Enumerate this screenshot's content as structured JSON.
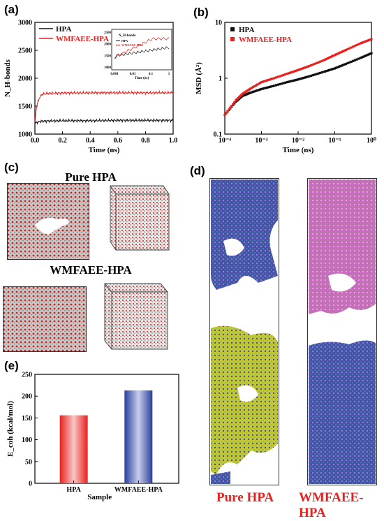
{
  "panels": {
    "a": {
      "label": "(a)"
    },
    "b": {
      "label": "(b)"
    },
    "c": {
      "label": "(c)",
      "title_top": "Pure HPA",
      "title_bottom": "WMFAEE-HPA"
    },
    "d": {
      "label": "(d)",
      "left_label": "Pure HPA",
      "right_label": "WMFAEE-HPA"
    },
    "e": {
      "label": "(e)"
    }
  },
  "colors": {
    "hpa": "#111111",
    "wmfaee": "#e8211e",
    "bar_red": "#e8211e",
    "bar_blue": "#2a3f9c"
  },
  "chart_data": [
    {
      "id": "a",
      "type": "line",
      "xlabel": "Time (ns)",
      "ylabel": "N_H-bonds",
      "xlim": [
        0,
        1.0
      ],
      "ylim": [
        1000,
        3000
      ],
      "xticks": [
        "0.0",
        "0.2",
        "0.4",
        "0.6",
        "0.8",
        "1.0"
      ],
      "yticks": [
        "1000",
        "1500",
        "2000",
        "2500",
        "3000"
      ],
      "legend": "top-left",
      "series": [
        {
          "name": "HPA",
          "x": [
            0,
            0.005,
            0.01,
            0.02,
            0.03,
            0.05,
            0.1,
            0.2,
            0.4,
            0.6,
            0.8,
            1.0
          ],
          "y": [
            1180,
            1200,
            1210,
            1215,
            1220,
            1230,
            1235,
            1240,
            1240,
            1245,
            1245,
            1245
          ]
        },
        {
          "name": "WMFAEE-HPA",
          "x": [
            0,
            0.005,
            0.01,
            0.02,
            0.03,
            0.05,
            0.1,
            0.2,
            0.4,
            0.6,
            0.8,
            1.0
          ],
          "y": [
            1180,
            1350,
            1460,
            1560,
            1640,
            1710,
            1730,
            1735,
            1740,
            1740,
            1740,
            1740
          ]
        }
      ],
      "inset": {
        "xlabel": "Time (ns)",
        "ylabel": "N_H-bonds",
        "xticks": [
          "0.001",
          "0.01",
          "0.1",
          "1"
        ],
        "yticks": [
          "1000",
          "1500",
          "2000",
          "2500"
        ],
        "legend": [
          "HPA",
          "WMFAEE-HPA"
        ]
      }
    },
    {
      "id": "b",
      "type": "scatter",
      "xscale": "log",
      "yscale": "log",
      "xlabel": "Time (ns)",
      "ylabel": "MSD (Å²)",
      "xlim": [
        0.0001,
        1
      ],
      "ylim": [
        0.1,
        10
      ],
      "xticks": [
        "10⁻⁴",
        "10⁻³",
        "10⁻²",
        "10⁻¹",
        "10⁰"
      ],
      "yticks": [
        "0.1",
        "1",
        "10"
      ],
      "legend": "top-left",
      "series": [
        {
          "name": "HPA",
          "x": [
            0.0001,
            0.0002,
            0.0003,
            0.0005,
            0.001,
            0.002,
            0.005,
            0.01,
            0.02,
            0.05,
            0.1,
            0.2,
            0.5,
            1.0
          ],
          "y": [
            0.22,
            0.38,
            0.48,
            0.55,
            0.64,
            0.72,
            0.85,
            0.95,
            1.08,
            1.3,
            1.5,
            1.8,
            2.3,
            2.8
          ]
        },
        {
          "name": "WMFAEE-HPA",
          "x": [
            0.0001,
            0.0002,
            0.0003,
            0.0005,
            0.001,
            0.002,
            0.005,
            0.01,
            0.02,
            0.05,
            0.1,
            0.2,
            0.5,
            1.0
          ],
          "y": [
            0.22,
            0.4,
            0.52,
            0.65,
            0.85,
            0.98,
            1.2,
            1.4,
            1.65,
            2.1,
            2.6,
            3.2,
            4.2,
            5.0
          ]
        }
      ]
    },
    {
      "id": "e",
      "type": "bar",
      "xlabel": "Sample",
      "ylabel": "E_coh (kcal/mol)",
      "ylim": [
        0,
        250
      ],
      "yticks": [
        "0",
        "50",
        "100",
        "150",
        "200",
        "250"
      ],
      "categories": [
        "HPA",
        "WMFAEE-HPA"
      ],
      "values": [
        156,
        213
      ]
    }
  ]
}
